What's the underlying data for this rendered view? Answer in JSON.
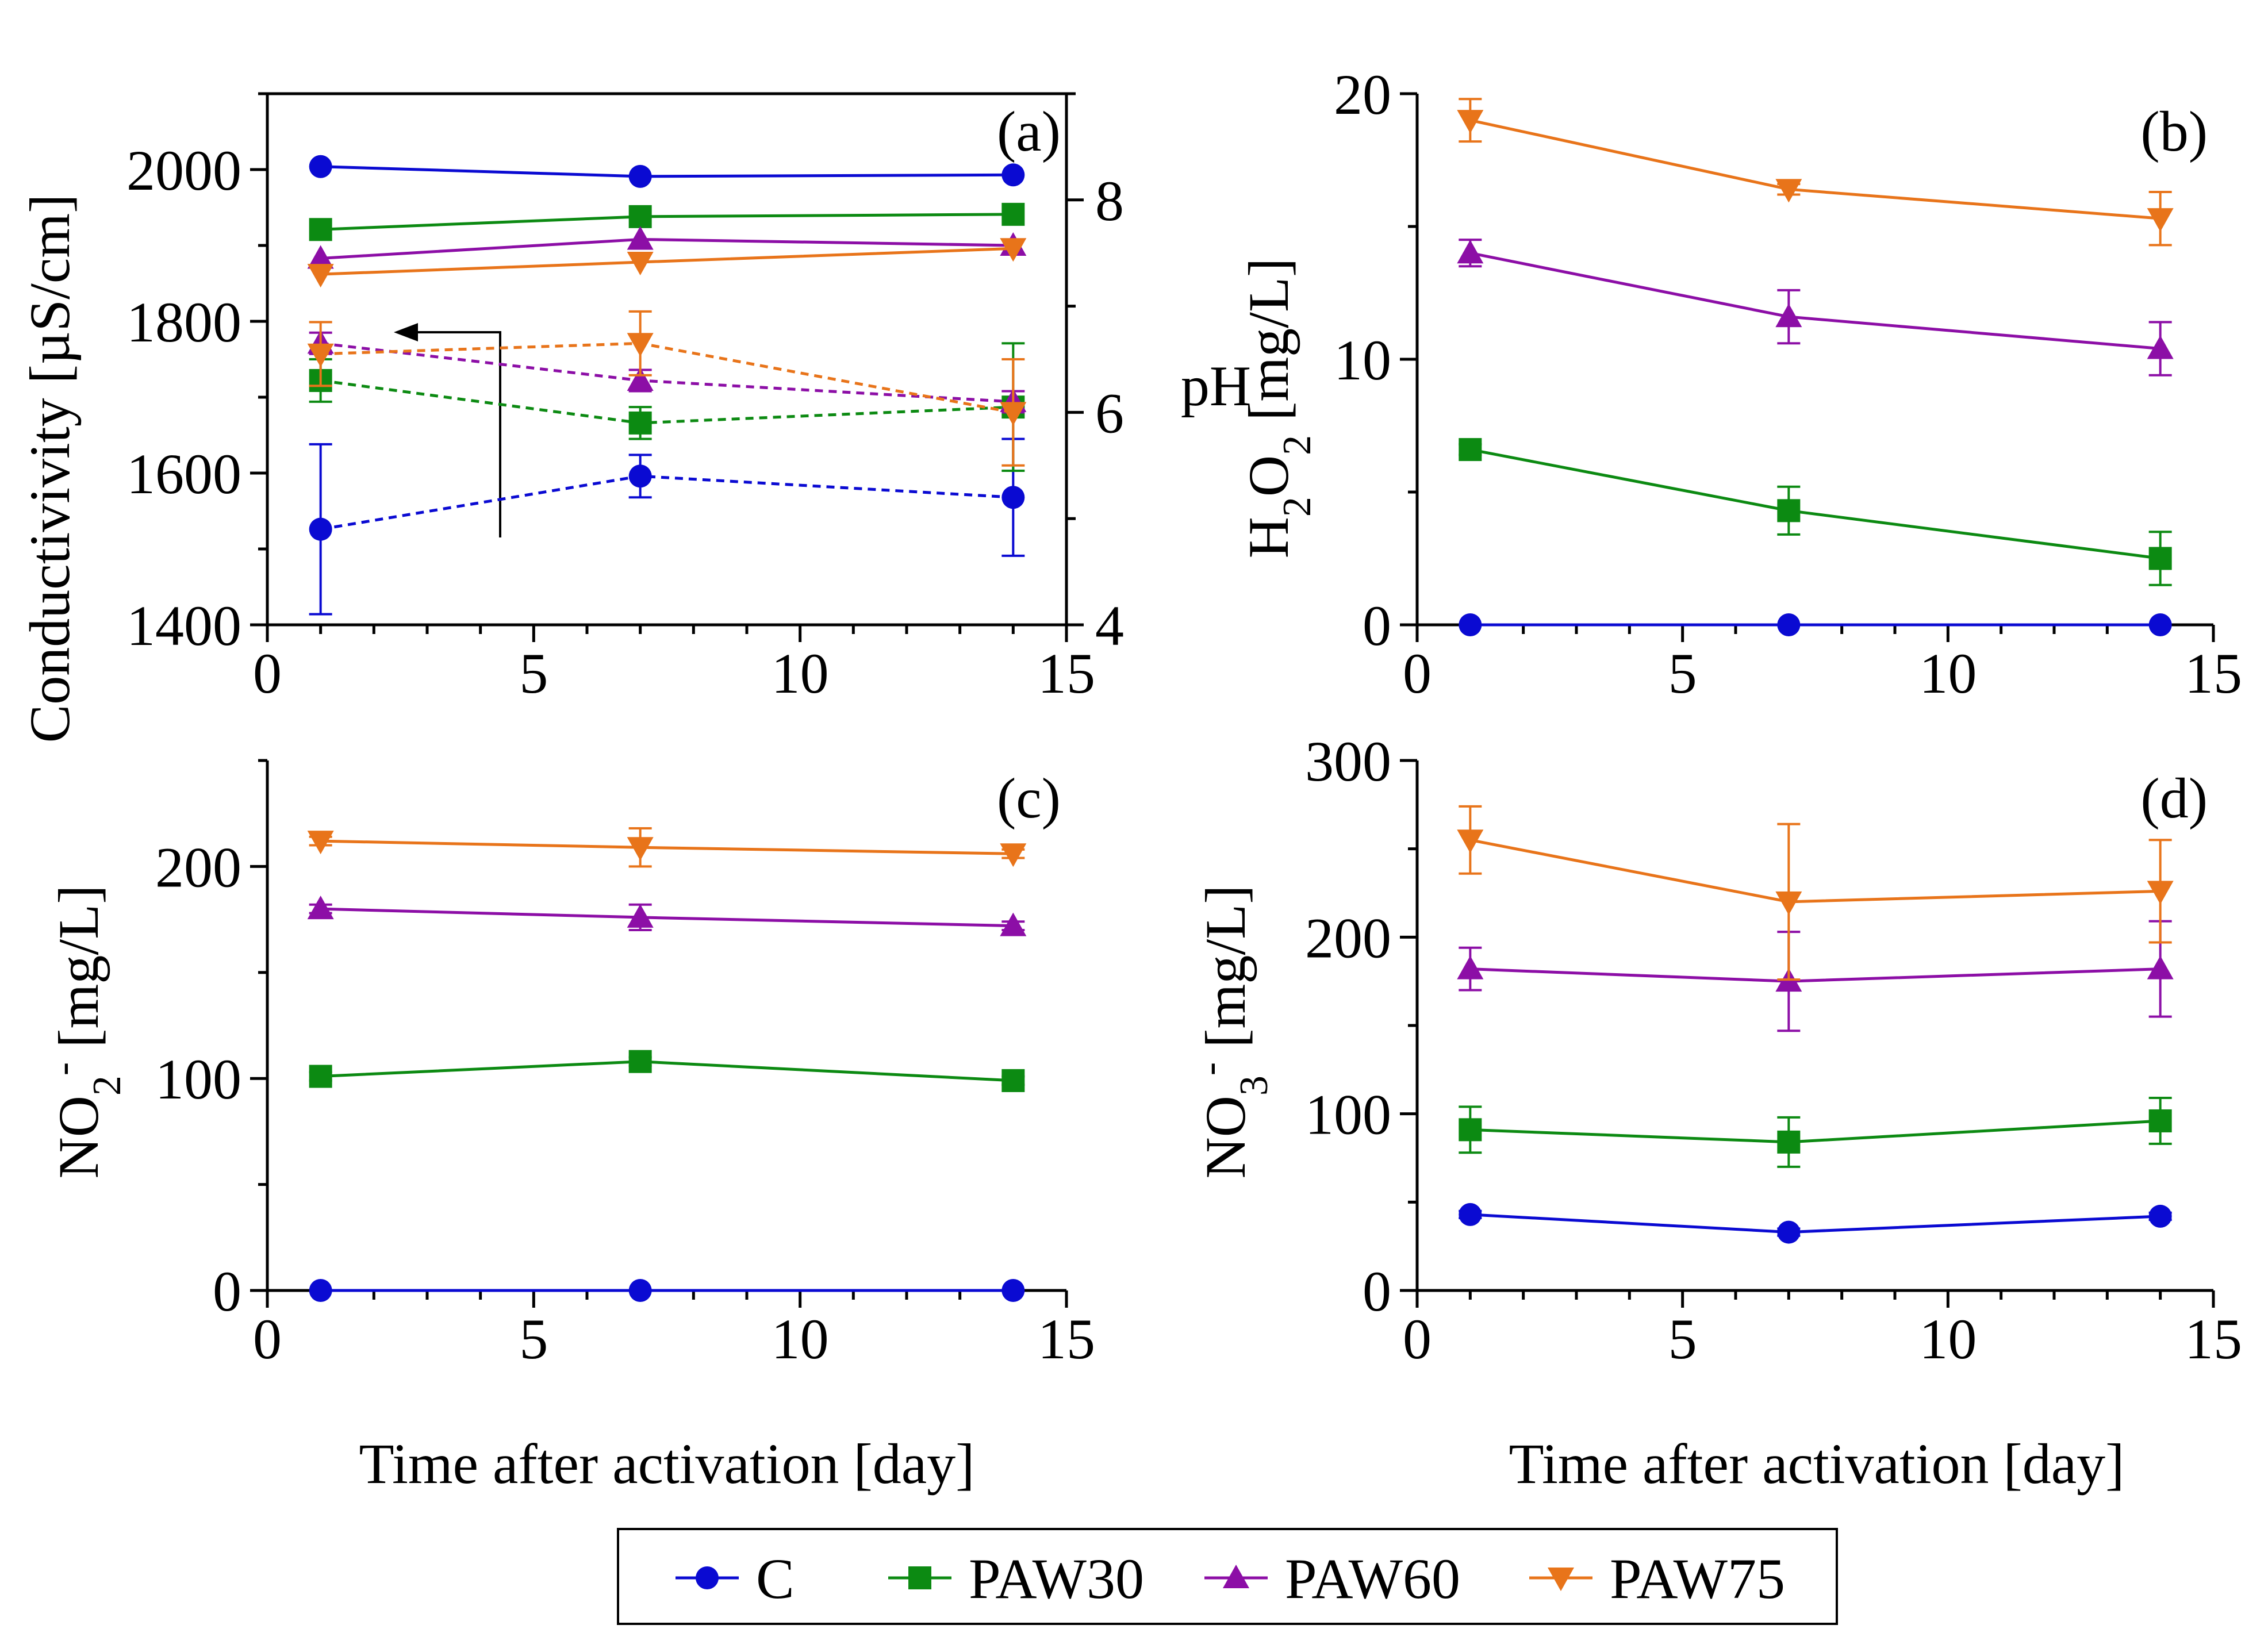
{
  "legend": [
    {
      "key": "C",
      "label": "C",
      "color": "#0a0ad2",
      "marker": "circle"
    },
    {
      "key": "PAW30",
      "label": "PAW30",
      "color": "#0c8a12",
      "marker": "square"
    },
    {
      "key": "PAW60",
      "label": "PAW60",
      "color": "#8c0ea6",
      "marker": "triangle-up"
    },
    {
      "key": "PAW75",
      "label": "PAW75",
      "color": "#e8741a",
      "marker": "triangle-down"
    }
  ],
  "chart_data": [
    {
      "id": "a",
      "panel_label": "(a)",
      "type": "line",
      "title": "",
      "xlabel": "",
      "ylabel": "Conductivivity [µS/cm]",
      "y2label": "pH",
      "xlim": [
        0,
        15
      ],
      "ylim": [
        1400,
        2100
      ],
      "y2lim": [
        4,
        9
      ],
      "xticks": [
        "0",
        "5",
        "10",
        "15"
      ],
      "yticks": [
        "1400",
        "1600",
        "1800",
        "2000"
      ],
      "y2ticks": [
        "4",
        "6",
        "8"
      ],
      "x": [
        1,
        7,
        14
      ],
      "series": [
        {
          "name": "C",
          "axis": "left",
          "style": "solid",
          "values": [
            2004,
            1991,
            1993
          ]
        },
        {
          "name": "PAW30",
          "axis": "left",
          "style": "solid",
          "values": [
            1921,
            1938,
            1941
          ]
        },
        {
          "name": "PAW60",
          "axis": "left",
          "style": "solid",
          "values": [
            1883,
            1908,
            1900
          ]
        },
        {
          "name": "PAW75",
          "axis": "left",
          "style": "solid",
          "values": [
            1862,
            1878,
            1896
          ]
        },
        {
          "name": "C",
          "axis": "right",
          "style": "dashed",
          "values": [
            4.9,
            5.4,
            5.2
          ],
          "errors": [
            0.8,
            0.2,
            0.55
          ]
        },
        {
          "name": "PAW30",
          "axis": "right",
          "style": "dashed",
          "values": [
            6.3,
            5.9,
            6.05
          ],
          "errors": [
            0.2,
            0.15,
            0.6
          ]
        },
        {
          "name": "PAW60",
          "axis": "right",
          "style": "dashed",
          "values": [
            6.65,
            6.3,
            6.1
          ],
          "errors": [
            0.1,
            0.1,
            0.1
          ]
        },
        {
          "name": "PAW75",
          "axis": "right",
          "style": "dashed",
          "values": [
            6.55,
            6.65,
            6.0
          ],
          "errors": [
            0.3,
            0.3,
            0.5
          ]
        }
      ]
    },
    {
      "id": "b",
      "panel_label": "(b)",
      "type": "line",
      "title": "",
      "xlabel": "",
      "ylabel": "H2O2 [mg/L]",
      "xlim": [
        0,
        15
      ],
      "ylim": [
        0,
        20
      ],
      "xticks": [
        "0",
        "5",
        "10",
        "15"
      ],
      "yticks": [
        "0",
        "10",
        "20"
      ],
      "x": [
        1,
        7,
        14
      ],
      "series": [
        {
          "name": "C",
          "values": [
            0,
            0,
            0
          ],
          "errors": [
            0,
            0,
            0
          ]
        },
        {
          "name": "PAW30",
          "values": [
            6.6,
            4.3,
            2.5
          ],
          "errors": [
            0.2,
            0.9,
            1.0
          ]
        },
        {
          "name": "PAW60",
          "values": [
            14.0,
            11.6,
            10.4
          ],
          "errors": [
            0.5,
            1.0,
            1.0
          ]
        },
        {
          "name": "PAW75",
          "values": [
            19.0,
            16.4,
            15.3
          ],
          "errors": [
            0.8,
            0.2,
            1.0
          ]
        }
      ]
    },
    {
      "id": "c",
      "panel_label": "(c)",
      "type": "line",
      "title": "",
      "xlabel": "Time after activation [day]",
      "ylabel": "NO2- [mg/L]",
      "xlim": [
        0,
        15
      ],
      "ylim": [
        0,
        250
      ],
      "xticks": [
        "0",
        "5",
        "10",
        "15"
      ],
      "yticks": [
        "0",
        "100",
        "200"
      ],
      "x": [
        1,
        7,
        14
      ],
      "series": [
        {
          "name": "C",
          "values": [
            0,
            0,
            0
          ],
          "errors": [
            0,
            0,
            0
          ]
        },
        {
          "name": "PAW30",
          "values": [
            101,
            108,
            99
          ],
          "errors": [
            2,
            2,
            2
          ]
        },
        {
          "name": "PAW60",
          "values": [
            180,
            176,
            172
          ],
          "errors": [
            2,
            6,
            2
          ]
        },
        {
          "name": "PAW75",
          "values": [
            212,
            209,
            206
          ],
          "errors": [
            2,
            9,
            2
          ]
        }
      ]
    },
    {
      "id": "d",
      "panel_label": "(d)",
      "type": "line",
      "title": "",
      "xlabel": "Time after activation [day]",
      "ylabel": "NO3- [mg/L]",
      "xlim": [
        0,
        15
      ],
      "ylim": [
        0,
        300
      ],
      "xticks": [
        "0",
        "5",
        "10",
        "15"
      ],
      "yticks": [
        "0",
        "100",
        "200",
        "300"
      ],
      "x": [
        1,
        7,
        14
      ],
      "series": [
        {
          "name": "C",
          "values": [
            43,
            33,
            42
          ],
          "errors": [
            2,
            2,
            2
          ]
        },
        {
          "name": "PAW30",
          "values": [
            91,
            84,
            96
          ],
          "errors": [
            13,
            14,
            13
          ]
        },
        {
          "name": "PAW60",
          "values": [
            182,
            175,
            182
          ],
          "errors": [
            12,
            28,
            27
          ]
        },
        {
          "name": "PAW75",
          "values": [
            255,
            220,
            226
          ],
          "errors": [
            19,
            44,
            29
          ]
        }
      ]
    }
  ]
}
